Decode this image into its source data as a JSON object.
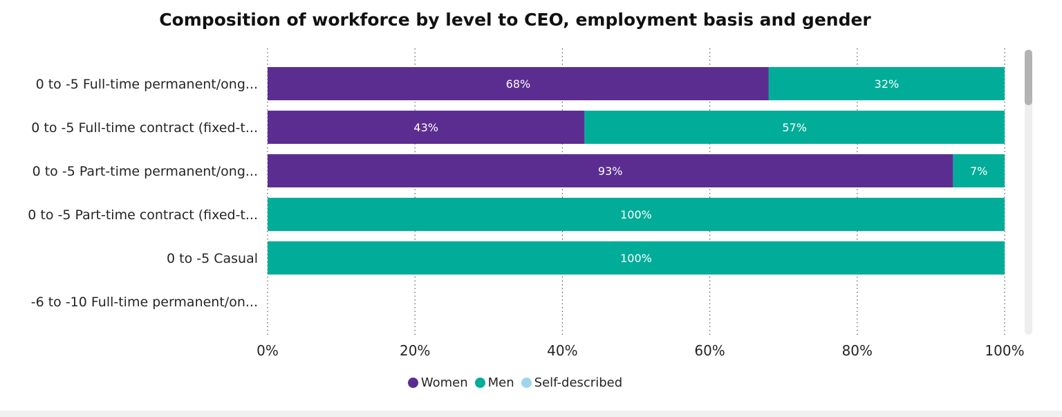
{
  "chart_data": {
    "type": "bar",
    "orientation": "horizontal",
    "stacked": true,
    "title": "Composition of workforce by level to CEO, employment basis and gender",
    "categories": [
      "0 to -5 Full-time permanent/ong...",
      "0 to -5 Full-time contract (fixed-t...",
      "0 to -5 Part-time permanent/ong...",
      "0 to -5 Part-time contract (fixed-t...",
      "0 to -5 Casual",
      "-6 to -10 Full-time permanent/on..."
    ],
    "series": [
      {
        "name": "Women",
        "color": "#5C2D91",
        "values": [
          68,
          43,
          93,
          0,
          0,
          null
        ],
        "labels": [
          "68%",
          "43%",
          "93%",
          "",
          "",
          ""
        ]
      },
      {
        "name": "Men",
        "color": "#01AD98",
        "values": [
          32,
          57,
          7,
          100,
          100,
          null
        ],
        "labels": [
          "32%",
          "57%",
          "7%",
          "100%",
          "100%",
          ""
        ]
      },
      {
        "name": "Self-described",
        "color": "#9ED5EE",
        "values": [
          0,
          0,
          0,
          0,
          0,
          null
        ],
        "labels": [
          "",
          "",
          "",
          "",
          "",
          ""
        ]
      }
    ],
    "xlim": [
      0,
      100
    ],
    "x_ticks": [
      "0%",
      "20%",
      "40%",
      "60%",
      "80%",
      "100%"
    ],
    "grid": "vertical dotted",
    "legend_position": "bottom-center"
  }
}
